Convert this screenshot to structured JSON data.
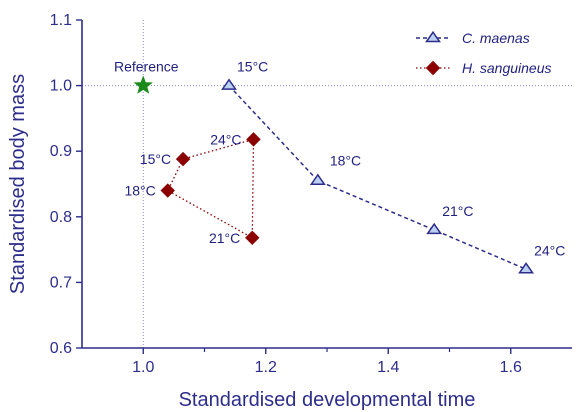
{
  "chart_data": {
    "type": "scatter",
    "xlabel": "Standardised developmental time",
    "ylabel": "Standardised body mass",
    "xlim": [
      0.9,
      1.7
    ],
    "ylim": [
      0.6,
      1.1
    ],
    "x_ticks": [
      1.0,
      1.2,
      1.4,
      1.6
    ],
    "y_ticks": [
      0.6,
      0.7,
      0.8,
      0.9,
      1.0,
      1.1
    ],
    "x_tick_labels": [
      "1.0",
      "1.2",
      "1.4",
      "1.6"
    ],
    "y_tick_labels": [
      "0.6",
      "0.7",
      "0.8",
      "0.9",
      "1.0",
      "1.1"
    ],
    "grid": false,
    "reference_lines": {
      "x": 1.0,
      "y": 1.0
    },
    "reference": {
      "label": "Reference",
      "x": 1.0,
      "y": 1.0,
      "marker": "star",
      "color": "#1a8a1a"
    },
    "legend_position": "top-right",
    "series": [
      {
        "name": "C. maenas",
        "marker": "triangle",
        "line_style": "dashed",
        "color": "#2d2d8c",
        "fill": "#bcd0f2",
        "points": [
          {
            "x": 1.14,
            "y": 1.0,
            "label": "15°C"
          },
          {
            "x": 1.285,
            "y": 0.855,
            "label": "18°C"
          },
          {
            "x": 1.475,
            "y": 0.78,
            "label": "21°C"
          },
          {
            "x": 1.625,
            "y": 0.72,
            "label": "24°C"
          }
        ]
      },
      {
        "name": "H. sanguineus",
        "marker": "diamond",
        "line_style": "dotted",
        "color": "#8b0000",
        "fill": "#8b0000",
        "points": [
          {
            "x": 1.065,
            "y": 0.888,
            "label": "15°C"
          },
          {
            "x": 1.04,
            "y": 0.84,
            "label": "18°C"
          },
          {
            "x": 1.178,
            "y": 0.768,
            "label": "21°C"
          },
          {
            "x": 1.18,
            "y": 0.918,
            "label": "24°C"
          }
        ]
      }
    ]
  }
}
